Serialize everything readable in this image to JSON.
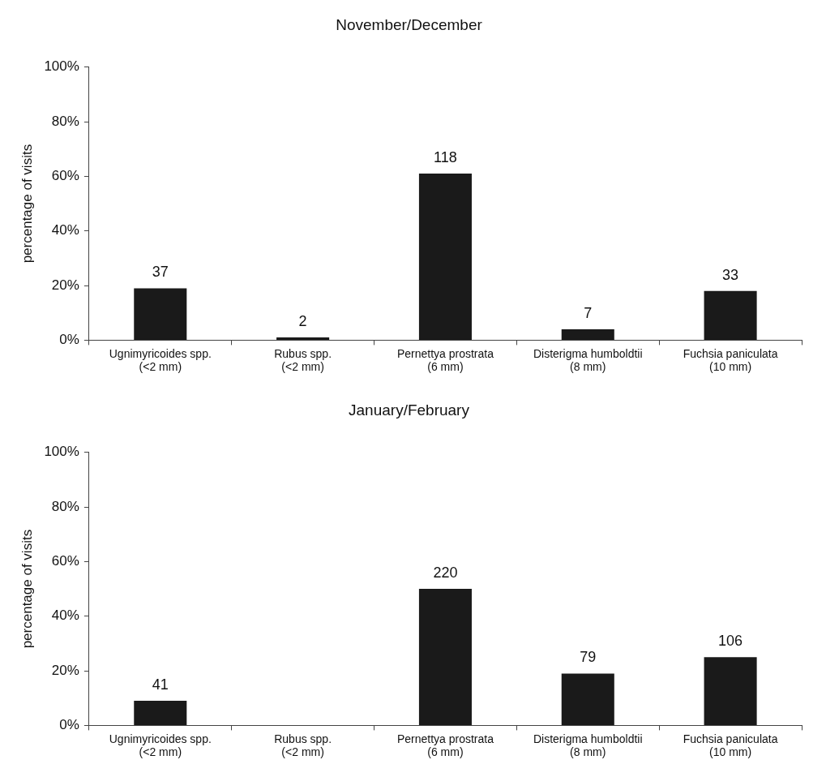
{
  "chart_data": [
    {
      "type": "bar",
      "title": "November/December",
      "ylabel": "percentage of visits",
      "categories": [
        "Ugnimyricoides spp.\n(<2 mm)",
        "Rubus spp.\n(<2 mm)",
        "Pernettya prostrata\n(6 mm)",
        "Disterigma humboldtii\n(8 mm)",
        "Fuchsia paniculata\n(10 mm)"
      ],
      "values": [
        19,
        1,
        61,
        4,
        18
      ],
      "annotations": [
        {
          "text": "37",
          "x": "Ugnimyricoides spp.\n(<2 mm)",
          "y": 19
        },
        {
          "text": "2",
          "x": "Rubus spp.\n(<2 mm)",
          "y": 1
        },
        {
          "text": "118",
          "x": "Pernettya prostrata\n(6 mm)",
          "y": 61
        },
        {
          "text": "7",
          "x": "Disterigma humboldtii\n(8 mm)",
          "y": 4
        },
        {
          "text": "33",
          "x": "Fuchsia paniculata\n(10 mm)",
          "y": 18
        }
      ],
      "color": "#1a1a1a",
      "ylim": [
        0,
        100
      ],
      "yticks": [
        {
          "value": 0,
          "label": "0%"
        },
        {
          "value": 20,
          "label": "20%"
        },
        {
          "value": 40,
          "label": "40%"
        },
        {
          "value": 60,
          "label": "60%"
        },
        {
          "value": 80,
          "label": "80%"
        },
        {
          "value": 100,
          "label": "100%"
        }
      ],
      "grid": false,
      "legend": false
    },
    {
      "type": "bar",
      "title": "January/February",
      "ylabel": "percentage of visits",
      "categories": [
        "Ugnimyricoides spp.\n(<2 mm)",
        "Rubus spp.\n(<2 mm)",
        "Pernettya prostrata\n(6 mm)",
        "Disterigma humboldtii\n(8 mm)",
        "Fuchsia paniculata\n(10 mm)"
      ],
      "values": [
        9,
        0,
        50,
        19,
        25
      ],
      "annotations": [
        {
          "text": "41",
          "x": "Ugnimyricoides spp.\n(<2 mm)",
          "y": 9
        },
        {
          "text": "220",
          "x": "Pernettya prostrata\n(6 mm)",
          "y": 50
        },
        {
          "text": "79",
          "x": "Disterigma humboldtii\n(8 mm)",
          "y": 19
        },
        {
          "text": "106",
          "x": "Fuchsia paniculata\n(10 mm)",
          "y": 25
        }
      ],
      "color": "#1a1a1a",
      "ylim": [
        0,
        100
      ],
      "yticks": [
        {
          "value": 0,
          "label": "0%"
        },
        {
          "value": 20,
          "label": "20%"
        },
        {
          "value": 40,
          "label": "40%"
        },
        {
          "value": 60,
          "label": "60%"
        },
        {
          "value": 80,
          "label": "80%"
        },
        {
          "value": 100,
          "label": "100%"
        }
      ],
      "grid": false,
      "legend": false
    }
  ]
}
